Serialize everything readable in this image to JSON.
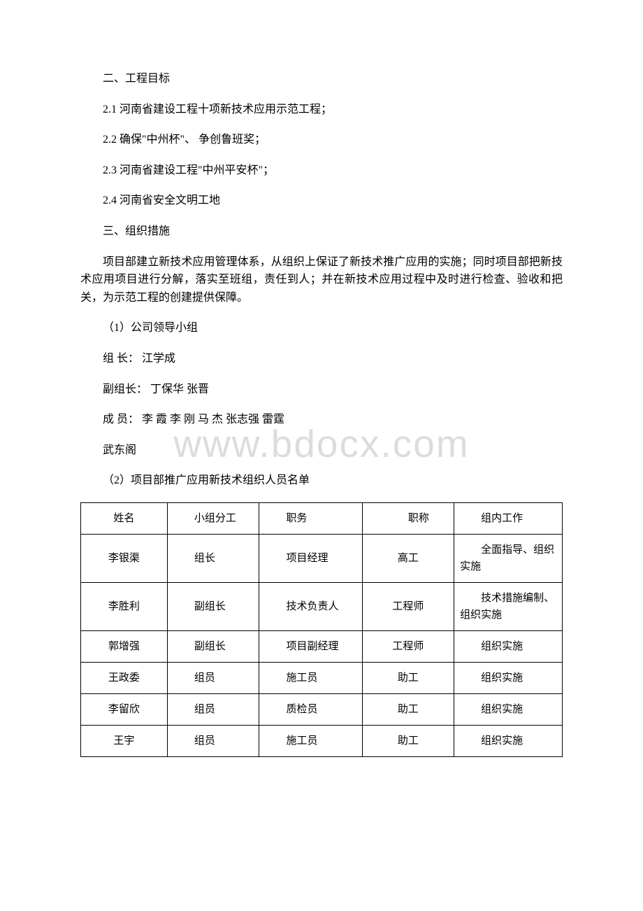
{
  "watermark": "www.bdocx.com",
  "section2": {
    "heading": "二、工程目标",
    "items": [
      "2.1 河南省建设工程十项新技术应用示范工程；",
      "2.2 确保\"中州杯\"、 争创鲁班奖；",
      "2.3 河南省建设工程\"中州平安杯\"；",
      "2.4 河南省安全文明工地"
    ]
  },
  "section3": {
    "heading": "三、组织措施",
    "intro": "项目部建立新技术应用管理体系，从组织上保证了新技术推广应用的实施；同时项目部把新技术应用项目进行分解，落实至班组，责任到人；并在新技术应用过程中及时进行检查、验收和把关，为示范工程的创建提供保障。",
    "group1": {
      "title": "（1）公司领导小组",
      "leader": "组 长： 江学成",
      "vice": "副组长： 丁保华 张晋",
      "members": "成 员： 李 霞 李 刚 马 杰 张志强 雷霆",
      "members2": "武东阁"
    },
    "group2": {
      "title": "（2）项目部推广应用新技术组织人员名单"
    }
  },
  "table": {
    "columns": [
      "姓名",
      "小组分工",
      "职务",
      "职称",
      "组内工作"
    ],
    "rows": [
      {
        "name": "李银渠",
        "group": "组长",
        "duty": "项目经理",
        "title": "高工",
        "work": "全面指导、组织实施"
      },
      {
        "name": "李胜利",
        "group": "副组长",
        "duty": "技术负责人",
        "title": "工程师",
        "work": "技术措施编制、组织实施"
      },
      {
        "name": "郭增强",
        "group": "副组长",
        "duty": "项目副经理",
        "title": "工程师",
        "work": "组织实施"
      },
      {
        "name": "王政委",
        "group": "组员",
        "duty": "施工员",
        "title": "助工",
        "work": "组织实施"
      },
      {
        "name": "李留欣",
        "group": "组员",
        "duty": "质检员",
        "title": "助工",
        "work": "组织实施"
      },
      {
        "name": "王宇",
        "group": "组员",
        "duty": "施工员",
        "title": "助工",
        "work": "组织实施"
      }
    ]
  }
}
